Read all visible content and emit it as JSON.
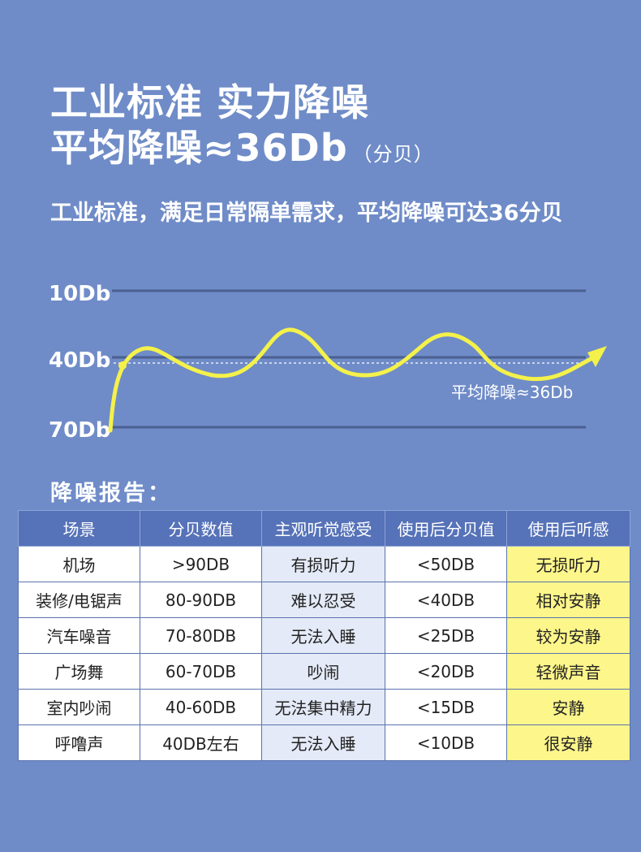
{
  "heading": {
    "line1": "工业标准 实力降噪",
    "line2_main": "平均降噪≈36Db",
    "line2_unit": "（分贝）"
  },
  "subtitle": "工业标准，满足日常隔单需求，平均降噪可达36分贝",
  "chart": {
    "levels": [
      "10Db",
      "40Db",
      "70Db"
    ],
    "average_label": "平均降噪≈36Db",
    "colors": {
      "curve": "#f4f14a",
      "grid": "#4b5f92",
      "dashed": "#ffffff"
    }
  },
  "report_title": "降噪报告：",
  "table": {
    "headers": [
      "场景",
      "分贝数值",
      "主观听觉感受",
      "使用后分贝值",
      "使用后听感"
    ],
    "rows": [
      [
        "机场",
        ">90DB",
        "有损听力",
        "<50DB",
        "无损听力"
      ],
      [
        "装修/电锯声",
        "80-90DB",
        "难以忍受",
        "<40DB",
        "相对安静"
      ],
      [
        "汽车噪音",
        "70-80DB",
        "无法入睡",
        "<25DB",
        "较为安静"
      ],
      [
        "广场舞",
        "60-70DB",
        "吵闹",
        "<20DB",
        "轻微声音"
      ],
      [
        "室内吵闹",
        "40-60DB",
        "无法集中精力",
        "<15DB",
        "安静"
      ],
      [
        "呼噜声",
        "40DB左右",
        "无法入睡",
        "<10DB",
        "很安静"
      ]
    ]
  },
  "colors": {
    "background": "#6f8cc8",
    "header_bg": "#5672b8",
    "highlight": "#fdf68b",
    "light_cell": "#e4eaf7"
  }
}
